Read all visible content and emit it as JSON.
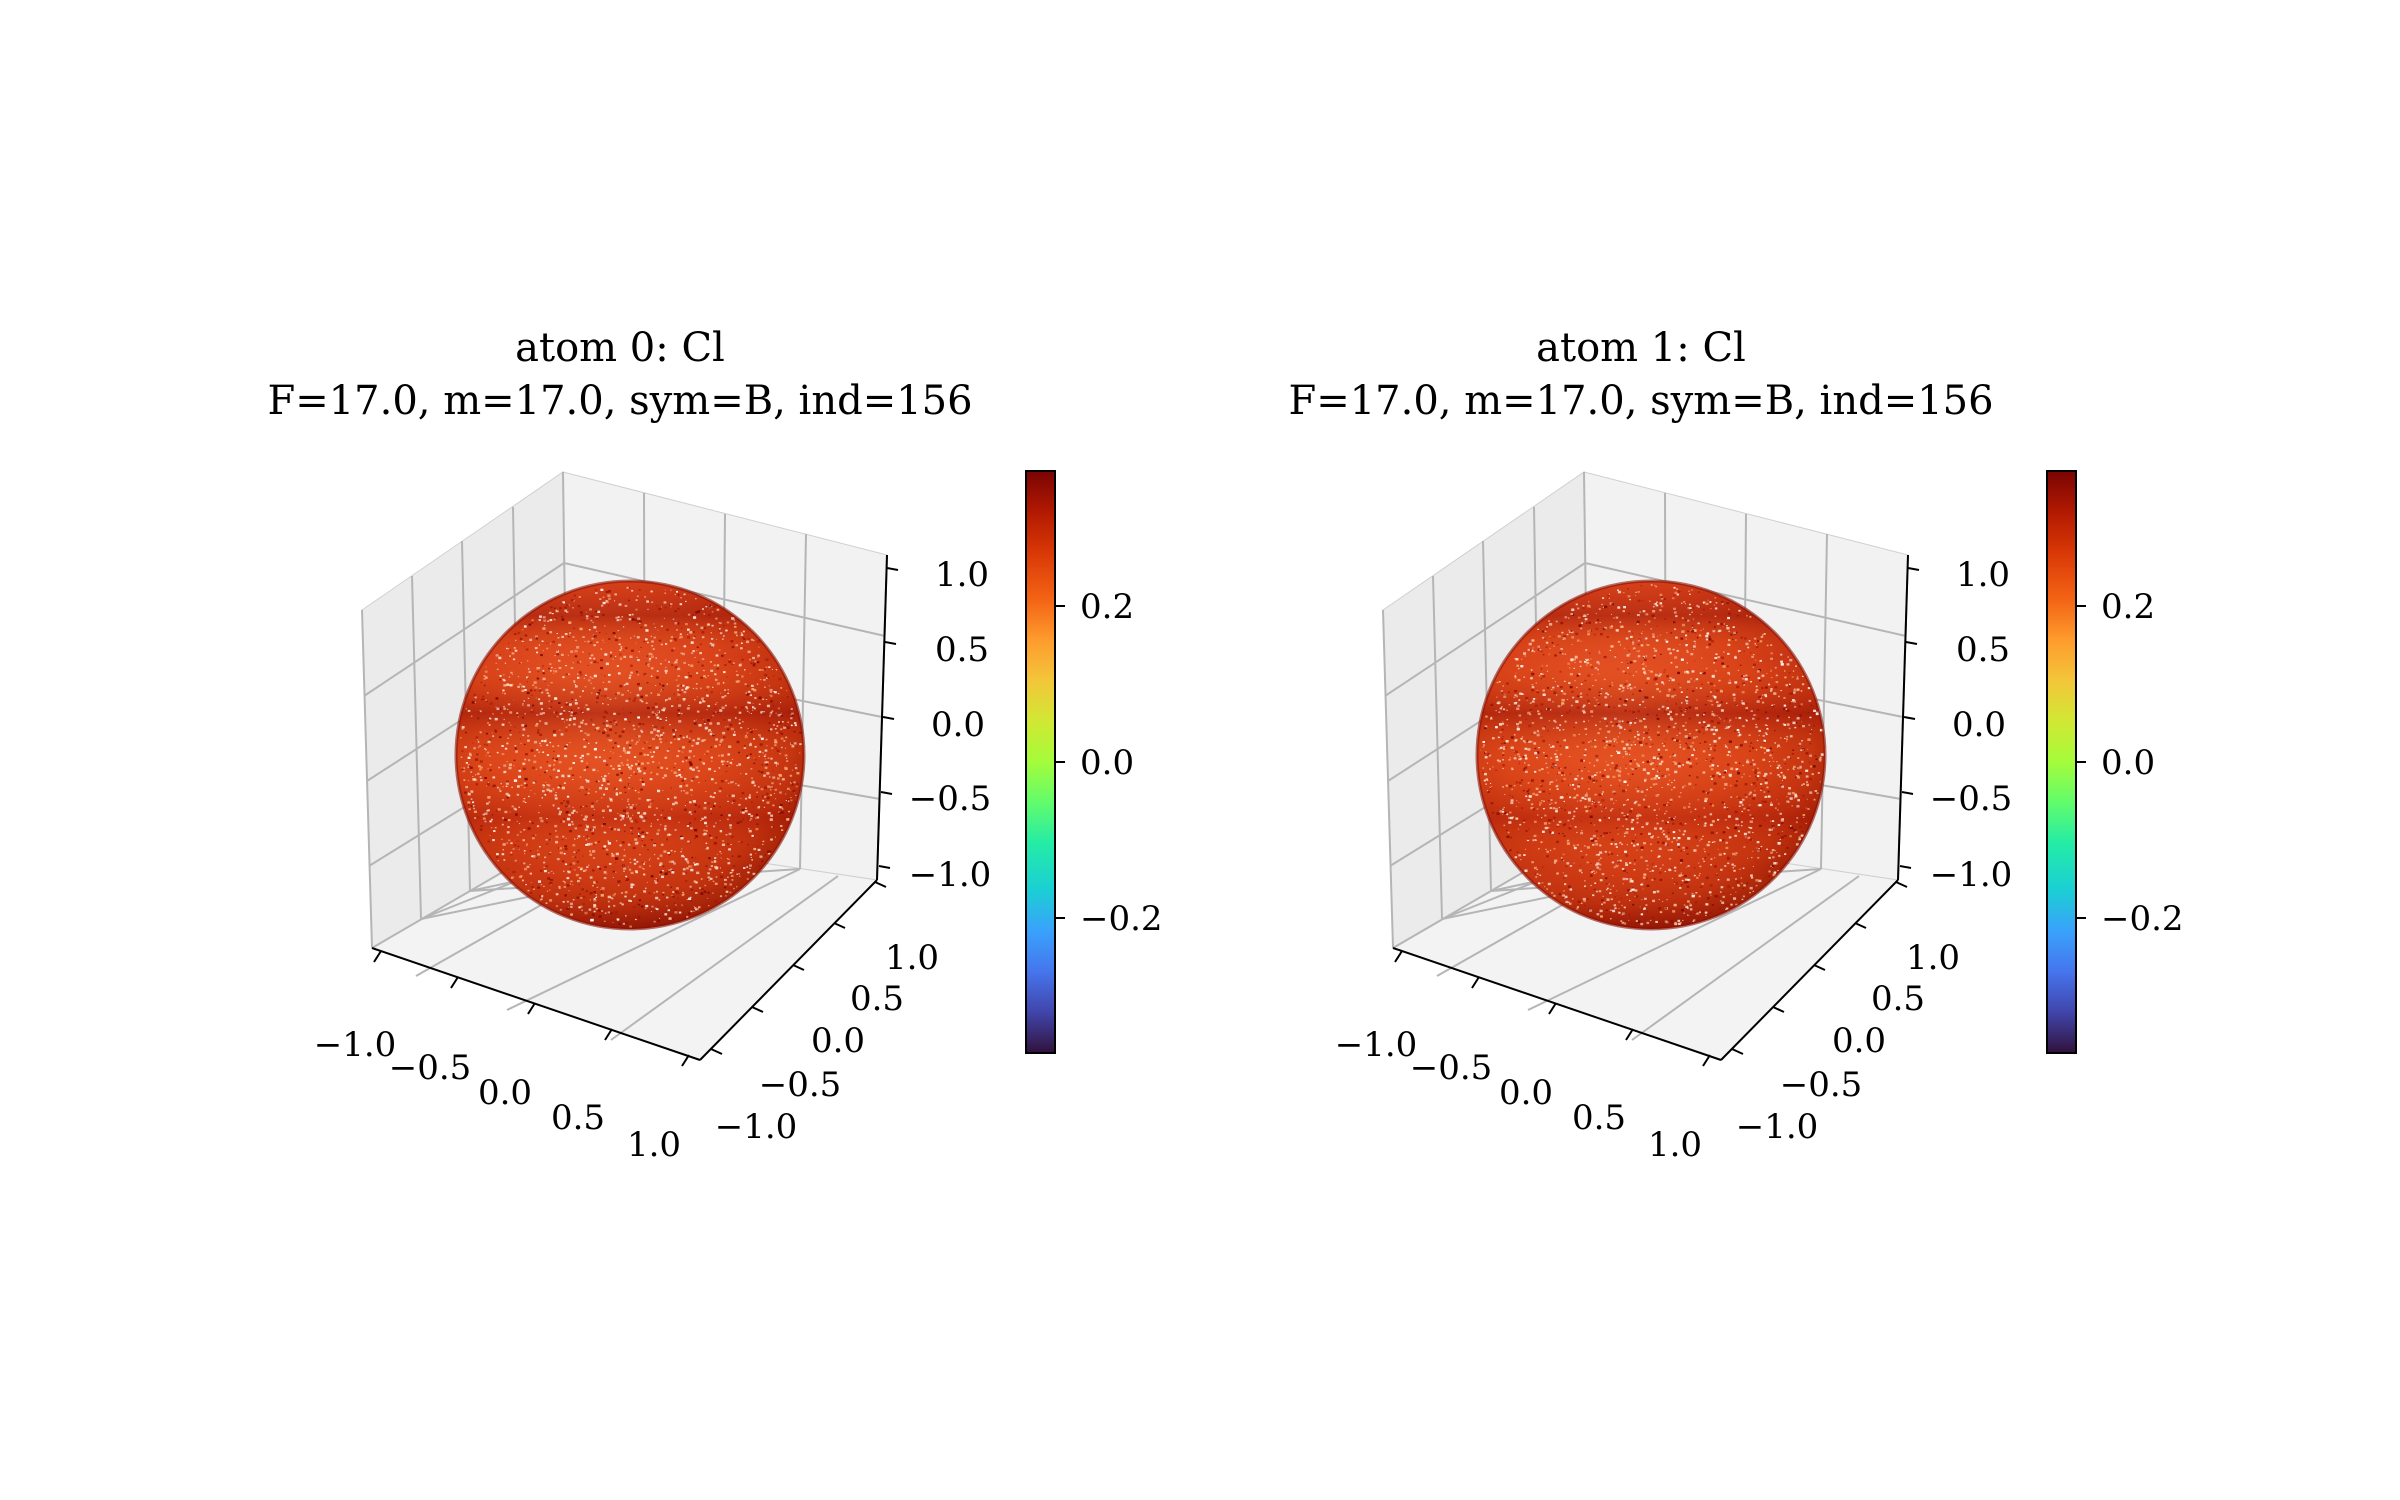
{
  "chart_data": [
    {
      "type": "surface",
      "title": "atom 0: Cl",
      "subtitle": "F=17.0, m=17.0, sym=B, ind=156",
      "surface": "unit sphere",
      "x_ticks": [
        "−1.0",
        "−0.5",
        "0.0",
        "0.5",
        "1.0"
      ],
      "y_ticks": [
        "−1.0",
        "−0.5",
        "0.0",
        "0.5",
        "1.0"
      ],
      "z_ticks": [
        "1.0",
        "0.5",
        "0.0",
        "−0.5",
        "−1.0"
      ],
      "xlim": [
        -1,
        1
      ],
      "ylim": [
        -1,
        1
      ],
      "zlim": [
        -1,
        1
      ],
      "grid": true,
      "colorbar": {
        "colormap": "turbo",
        "range": [
          -0.37,
          0.37
        ],
        "ticks": [
          "0.2",
          "0.0",
          "−0.2"
        ]
      },
      "surface_values": "mostly 0.25 to 0.37 (orange to dark red) with scattered lower values"
    },
    {
      "type": "surface",
      "title": "atom 1: Cl",
      "subtitle": "F=17.0, m=17.0, sym=B, ind=156",
      "surface": "unit sphere",
      "x_ticks": [
        "−1.0",
        "−0.5",
        "0.0",
        "0.5",
        "1.0"
      ],
      "y_ticks": [
        "−1.0",
        "−0.5",
        "0.0",
        "0.5",
        "1.0"
      ],
      "z_ticks": [
        "1.0",
        "0.5",
        "0.0",
        "−0.5",
        "−1.0"
      ],
      "xlim": [
        -1,
        1
      ],
      "ylim": [
        -1,
        1
      ],
      "zlim": [
        -1,
        1
      ],
      "grid": true,
      "colorbar": {
        "colormap": "turbo",
        "range": [
          -0.37,
          0.37
        ],
        "ticks": [
          "0.2",
          "0.0",
          "−0.2"
        ]
      },
      "surface_values": "mostly 0.25 to 0.37 (orange to dark red) with scattered lower values"
    }
  ]
}
